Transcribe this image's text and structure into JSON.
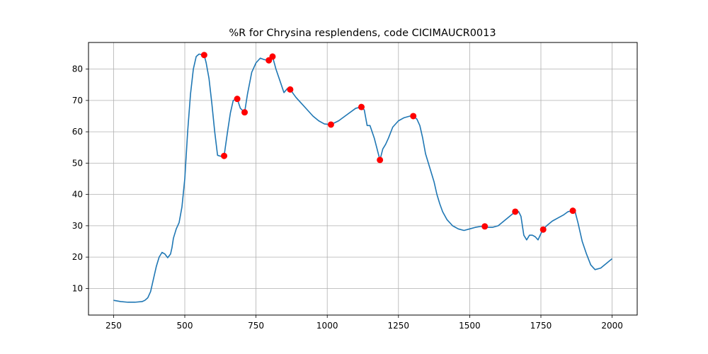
{
  "chart_data": {
    "type": "line",
    "title": "%R for Chrysina resplendens, code CICIMAUCR0013",
    "xlabel": "",
    "ylabel": "",
    "xlim": [
      162,
      2088
    ],
    "ylim": [
      1.5,
      88.5
    ],
    "x_ticks": [
      250,
      500,
      750,
      1000,
      1250,
      1500,
      1750,
      2000
    ],
    "y_ticks": [
      10,
      20,
      30,
      40,
      50,
      60,
      70,
      80
    ],
    "grid": true,
    "line_color": "#1f77b4",
    "marker_color": "#ff0000",
    "series": [
      {
        "x": [
          250,
          275,
          300,
          325,
          350,
          360,
          370,
          380,
          390,
          400,
          410,
          420,
          430,
          440,
          450,
          455,
          460,
          470,
          480,
          490,
          500,
          510,
          520,
          530,
          540,
          550,
          560,
          568,
          575,
          585,
          595,
          605,
          615,
          625,
          638,
          650,
          660,
          670,
          684,
          695,
          710,
          720,
          735,
          750,
          765,
          780,
          795,
          808,
          820,
          835,
          848,
          860,
          870,
          890,
          910,
          930,
          950,
          970,
          990,
          1013,
          1040,
          1070,
          1100,
          1120,
          1130,
          1140,
          1150,
          1165,
          1185,
          1195,
          1205,
          1215,
          1230,
          1250,
          1270,
          1290,
          1302,
          1315,
          1325,
          1335,
          1345,
          1355,
          1365,
          1375,
          1385,
          1395,
          1405,
          1420,
          1440,
          1460,
          1480,
          1500,
          1520,
          1540,
          1553,
          1565,
          1580,
          1600,
          1620,
          1640,
          1660,
          1672,
          1680,
          1690,
          1700,
          1710,
          1720,
          1730,
          1740,
          1750,
          1758,
          1770,
          1790,
          1810,
          1830,
          1845,
          1862,
          1870,
          1880,
          1895,
          1910,
          1925,
          1940,
          1960,
          1980,
          2000
        ],
        "y": [
          6.2,
          5.8,
          5.6,
          5.6,
          5.8,
          6.2,
          7,
          9,
          13,
          17,
          20,
          21.5,
          21,
          19.8,
          21,
          23,
          26,
          29,
          31,
          36,
          45,
          60,
          72,
          80,
          84,
          84.8,
          84.6,
          84.5,
          82,
          77,
          69,
          60,
          52.5,
          52.2,
          52.3,
          60,
          66,
          70,
          70.5,
          67.5,
          66.2,
          72,
          79,
          82,
          83.5,
          83,
          82.8,
          84,
          80,
          76,
          72.5,
          73.8,
          73.5,
          71,
          69,
          67,
          65,
          63.5,
          62.5,
          62.3,
          63.5,
          65.5,
          67.5,
          67.9,
          67,
          62,
          62,
          58,
          51,
          54.5,
          56,
          58,
          61.5,
          63.5,
          64.5,
          65,
          65,
          64,
          62,
          58,
          53,
          50,
          47,
          44,
          40,
          37,
          34.5,
          32,
          30,
          29,
          28.5,
          29,
          29.5,
          29.8,
          29.8,
          29.5,
          29.5,
          30,
          31.5,
          33,
          34.5,
          34.5,
          33,
          27,
          25.5,
          27,
          27,
          26.5,
          25.5,
          27.5,
          28.8,
          30,
          31.5,
          32.5,
          33.5,
          34.5,
          34.8,
          34.5,
          31,
          25,
          21,
          17.5,
          16,
          16.5,
          18,
          19.5
        ]
      }
    ],
    "markers": [
      {
        "x": 568,
        "y": 84.5
      },
      {
        "x": 638,
        "y": 52.3
      },
      {
        "x": 684,
        "y": 70.5
      },
      {
        "x": 710,
        "y": 66.2
      },
      {
        "x": 795,
        "y": 82.8
      },
      {
        "x": 808,
        "y": 84.0
      },
      {
        "x": 870,
        "y": 73.5
      },
      {
        "x": 1013,
        "y": 62.3
      },
      {
        "x": 1120,
        "y": 67.9
      },
      {
        "x": 1185,
        "y": 51.0
      },
      {
        "x": 1302,
        "y": 65.0
      },
      {
        "x": 1553,
        "y": 29.8
      },
      {
        "x": 1660,
        "y": 34.5
      },
      {
        "x": 1758,
        "y": 28.8
      },
      {
        "x": 1862,
        "y": 34.8
      }
    ]
  }
}
